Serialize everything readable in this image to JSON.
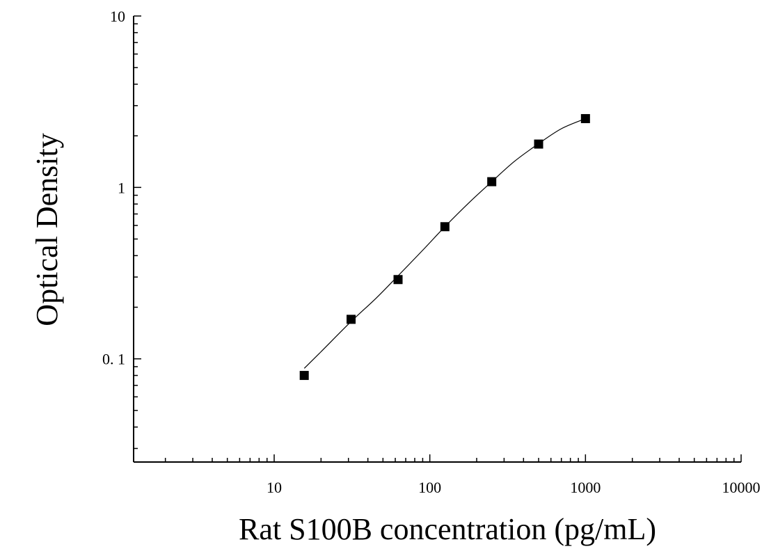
{
  "chart_data": {
    "type": "scatter",
    "xlabel": "Rat S100B concentration (pg/mL)",
    "ylabel": "Optical Density",
    "xscale": "log",
    "yscale": "log",
    "xlim": [
      1.25,
      10000
    ],
    "ylim": [
      0.025,
      10
    ],
    "x_ticks": [
      {
        "value": 10,
        "label": "10"
      },
      {
        "value": 100,
        "label": "100"
      },
      {
        "value": 1000,
        "label": "1000"
      },
      {
        "value": 10000,
        "label": "10000"
      }
    ],
    "y_ticks": [
      {
        "value": 0.1,
        "label": "0. 1"
      },
      {
        "value": 1,
        "label": "1"
      },
      {
        "value": 10,
        "label": "10"
      }
    ],
    "grid": false,
    "series": [
      {
        "marker": "square",
        "color": "#000000",
        "points": [
          {
            "x": 15.6,
            "y": 0.08
          },
          {
            "x": 31.2,
            "y": 0.17
          },
          {
            "x": 62.5,
            "y": 0.29
          },
          {
            "x": 125,
            "y": 0.59
          },
          {
            "x": 250,
            "y": 1.08
          },
          {
            "x": 500,
            "y": 1.79
          },
          {
            "x": 1000,
            "y": 2.52
          }
        ]
      }
    ],
    "fit_curve": {
      "color": "#000000",
      "points": [
        {
          "x": 15.6,
          "y": 0.088
        },
        {
          "x": 20,
          "y": 0.11
        },
        {
          "x": 31.2,
          "y": 0.165
        },
        {
          "x": 45,
          "y": 0.225
        },
        {
          "x": 62.5,
          "y": 0.305
        },
        {
          "x": 90,
          "y": 0.43
        },
        {
          "x": 125,
          "y": 0.59
        },
        {
          "x": 180,
          "y": 0.82
        },
        {
          "x": 250,
          "y": 1.08
        },
        {
          "x": 350,
          "y": 1.42
        },
        {
          "x": 500,
          "y": 1.8
        },
        {
          "x": 700,
          "y": 2.2
        },
        {
          "x": 1000,
          "y": 2.52
        }
      ]
    }
  }
}
